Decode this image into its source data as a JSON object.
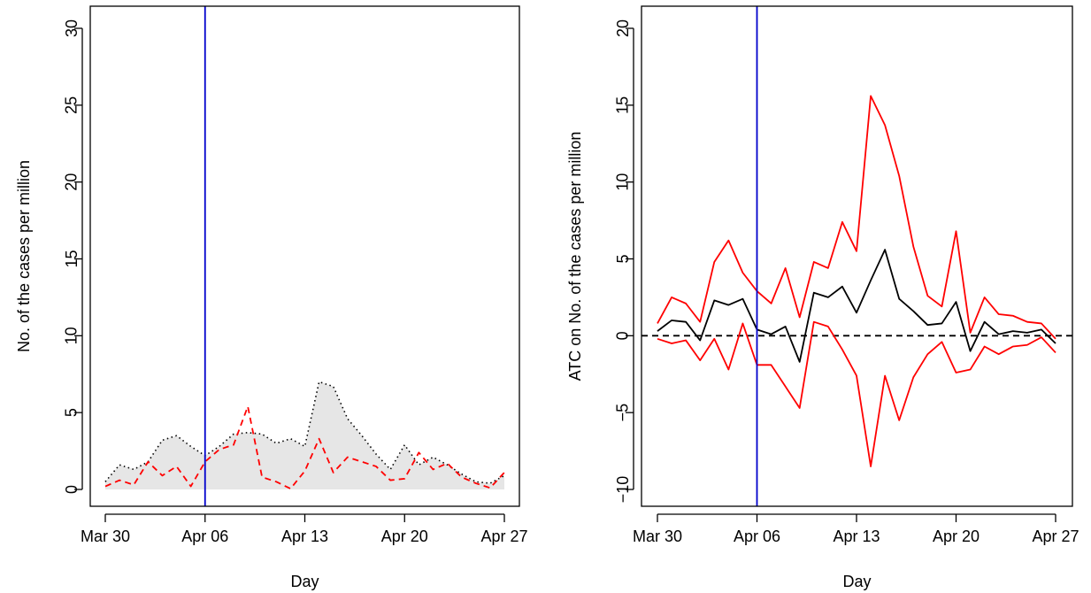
{
  "chart_data": [
    {
      "type": "line",
      "xlabel": "Day",
      "ylabel": "No. of the cases per million",
      "xlim": [
        0,
        28
      ],
      "ylim": [
        0,
        30
      ],
      "x_ticks": [
        {
          "day": 0,
          "label": "Mar 30"
        },
        {
          "day": 7,
          "label": "Apr 06"
        },
        {
          "day": 14,
          "label": "Apr 13"
        },
        {
          "day": 21,
          "label": "Apr 20"
        },
        {
          "day": 28,
          "label": "Apr 27"
        }
      ],
      "y_ticks": [
        0,
        5,
        10,
        15,
        20,
        25,
        30
      ],
      "vline": {
        "day": 7,
        "color": "#0000cc"
      },
      "series": [
        {
          "style": "dotted-shaded",
          "color": "#000000",
          "fill": "#e6e6e6",
          "values": [
            0.5,
            1.6,
            1.3,
            1.8,
            3.2,
            3.5,
            2.8,
            2.2,
            2.8,
            3.6,
            3.7,
            3.6,
            3.0,
            3.3,
            2.8,
            7.0,
            6.7,
            4.6,
            3.5,
            2.3,
            1.3,
            2.9,
            1.6,
            2.1,
            1.6,
            1.0,
            0.5,
            0.4,
            0.9
          ]
        },
        {
          "style": "dashed",
          "color": "#ff0000",
          "values": [
            0.2,
            0.6,
            0.3,
            1.8,
            0.9,
            1.5,
            0.2,
            1.8,
            2.6,
            2.9,
            5.4,
            0.8,
            0.5,
            0.05,
            1.2,
            3.3,
            1.1,
            2.1,
            1.8,
            1.5,
            0.6,
            0.7,
            2.4,
            1.3,
            1.7,
            0.8,
            0.4,
            0.1,
            1.1
          ]
        }
      ]
    },
    {
      "type": "line",
      "xlabel": "Day",
      "ylabel": "ATC on No. of the cases per million",
      "xlim": [
        0,
        28
      ],
      "ylim": [
        -10,
        20
      ],
      "x_ticks": [
        {
          "day": 0,
          "label": "Mar 30"
        },
        {
          "day": 7,
          "label": "Apr 06"
        },
        {
          "day": 14,
          "label": "Apr 13"
        },
        {
          "day": 21,
          "label": "Apr 20"
        },
        {
          "day": 28,
          "label": "Apr 27"
        }
      ],
      "y_ticks": [
        -10,
        -5,
        0,
        5,
        10,
        15,
        20
      ],
      "y_tick_labels": [
        "−10",
        "−5",
        "0",
        "5",
        "10",
        "15",
        "20"
      ],
      "vline": {
        "day": 7,
        "color": "#0000cc"
      },
      "hline": {
        "y": 0,
        "style": "dashed",
        "color": "#000000"
      },
      "series": [
        {
          "style": "solid",
          "color": "#ff0000",
          "values": [
            0.8,
            2.5,
            2.1,
            0.9,
            4.8,
            6.2,
            4.1,
            2.9,
            2.1,
            4.4,
            1.2,
            4.8,
            4.4,
            7.4,
            5.5,
            15.6,
            13.7,
            10.4,
            5.8,
            2.6,
            1.9,
            6.8,
            0.2,
            2.5,
            1.4,
            1.3,
            0.9,
            0.8,
            -0.2
          ]
        },
        {
          "style": "solid",
          "color": "#000000",
          "values": [
            0.3,
            1.0,
            0.9,
            -0.3,
            2.3,
            2.0,
            2.4,
            0.4,
            0.1,
            0.6,
            -1.7,
            2.8,
            2.5,
            3.2,
            1.5,
            3.6,
            5.6,
            2.4,
            1.6,
            0.7,
            0.8,
            2.2,
            -1.0,
            0.9,
            0.1,
            0.3,
            0.2,
            0.4,
            -0.5
          ]
        },
        {
          "style": "solid",
          "color": "#ff0000",
          "values": [
            -0.2,
            -0.5,
            -0.3,
            -1.6,
            -0.2,
            -2.2,
            0.8,
            -1.9,
            -1.9,
            -3.3,
            -4.7,
            0.9,
            0.6,
            -0.9,
            -2.6,
            -8.5,
            -2.6,
            -5.5,
            -2.7,
            -1.2,
            -0.4,
            -2.4,
            -2.2,
            -0.7,
            -1.2,
            -0.7,
            -0.6,
            -0.1,
            -1.1
          ]
        }
      ]
    }
  ]
}
